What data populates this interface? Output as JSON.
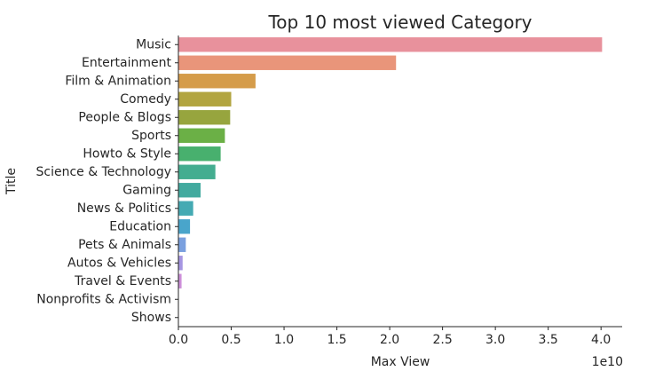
{
  "chart_data": {
    "type": "bar",
    "orientation": "horizontal",
    "title": "Top 10 most viewed Category",
    "xlabel": "Max View",
    "ylabel": "Title",
    "x_scale_label": "1e10",
    "xlim": [
      0,
      4.2
    ],
    "xticks": [
      "0.0",
      "0.5",
      "1.0",
      "1.5",
      "2.0",
      "2.5",
      "3.0",
      "3.5",
      "4.0"
    ],
    "grid": false,
    "categories": [
      "Music",
      "Entertainment",
      "Film & Animation",
      "Comedy",
      "People & Blogs",
      "Sports",
      "Howto & Style",
      "Science & Technology",
      "Gaming",
      "News & Politics",
      "Education",
      "Pets & Animals",
      "Autos & Vehicles",
      "Travel & Events",
      "Nonprofits & Activism",
      "Shows"
    ],
    "values": [
      4.01,
      2.06,
      0.73,
      0.5,
      0.49,
      0.44,
      0.4,
      0.35,
      0.21,
      0.14,
      0.11,
      0.07,
      0.04,
      0.03,
      0.002,
      0.001
    ],
    "colors": [
      "#e8919c",
      "#e9957a",
      "#d59c4a",
      "#b2a540",
      "#97a53e",
      "#6bb046",
      "#48b06e",
      "#44ad90",
      "#42aa9f",
      "#45aab3",
      "#49a5cb",
      "#7aa0df",
      "#a696e2",
      "#cd8fd9",
      "#e18bc5",
      "#e68fb0"
    ]
  }
}
